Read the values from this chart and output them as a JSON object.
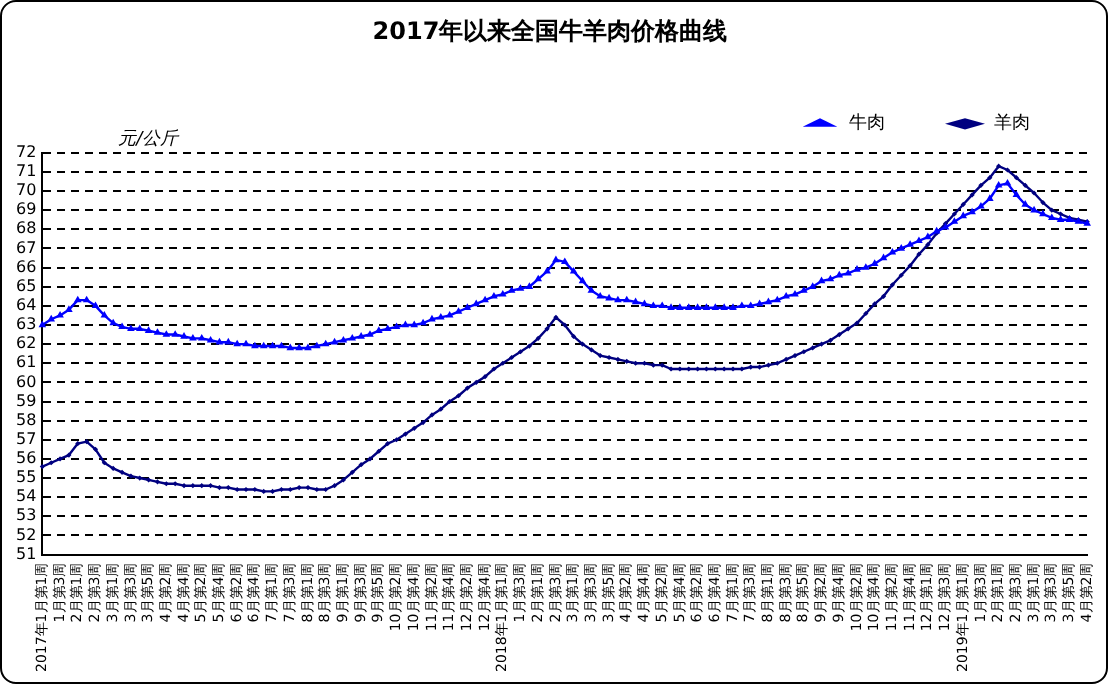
{
  "chart_data": {
    "type": "line",
    "title": "2017年以来全国牛羊肉价格曲线",
    "ylabel": "元/公斤",
    "categories": [
      "2017年1月第1周",
      null,
      "1月第3周",
      null,
      "2月第1周",
      null,
      "2月第3周",
      null,
      "3月第1周",
      null,
      "3月第3周",
      null,
      "3月第5周",
      null,
      "4月第2周",
      null,
      "4月第4周",
      null,
      "5月第2周",
      null,
      "5月第4周",
      null,
      "6月第2周",
      null,
      "6月第4周",
      null,
      "7月第1周",
      null,
      "7月第3周",
      null,
      "8月第1周",
      null,
      "8月第3周",
      null,
      "9月第1周",
      null,
      "9月第3周",
      null,
      "9月第5周",
      null,
      "10月第2周",
      null,
      "10月第4周",
      null,
      "11月第2周",
      null,
      "11月第4周",
      null,
      "12月第2周",
      null,
      "12月第4周",
      null,
      "2018年1月第1周",
      null,
      "1月第3周",
      null,
      "2月第1周",
      null,
      "2月第3周",
      null,
      "3月第1周",
      null,
      "3月第3周",
      null,
      "3月第5周",
      null,
      "4月第2周",
      null,
      "4月第4周",
      null,
      "5月第2周",
      null,
      "5月第4周",
      null,
      "6月第2周",
      null,
      "6月第4周",
      null,
      "7月第1周",
      null,
      "7月第3周",
      null,
      "8月第1周",
      null,
      "8月第3周",
      null,
      "8月第5周",
      null,
      "9月第2周",
      null,
      "9月第4周",
      null,
      "10月第2周",
      null,
      "10月第4周",
      null,
      "11月第2周",
      null,
      "11月第4周",
      null,
      "12月第1周",
      null,
      "12月第3周",
      null,
      "2019年1月第1周",
      null,
      "1月第3周",
      null,
      "2月第1周",
      null,
      "2月第3周",
      null,
      "3月第1周",
      null,
      "3月第3周",
      null,
      "3月第5周",
      null,
      "4月第2周"
    ],
    "series": [
      {
        "name": "牛肉",
        "color": "#0000ff",
        "marker": "triangle",
        "values": [
          63.0,
          63.3,
          63.5,
          63.8,
          64.3,
          64.3,
          64.0,
          63.5,
          63.1,
          62.9,
          62.8,
          62.8,
          62.7,
          62.6,
          62.5,
          62.5,
          62.4,
          62.3,
          62.3,
          62.2,
          62.1,
          62.1,
          62.0,
          62.0,
          61.9,
          61.9,
          61.9,
          61.9,
          61.8,
          61.8,
          61.8,
          61.9,
          62.0,
          62.1,
          62.2,
          62.3,
          62.4,
          62.5,
          62.7,
          62.8,
          62.9,
          63.0,
          63.0,
          63.1,
          63.3,
          63.4,
          63.5,
          63.7,
          63.9,
          64.1,
          64.3,
          64.5,
          64.6,
          64.8,
          64.9,
          65.0,
          65.4,
          65.8,
          66.4,
          66.3,
          65.8,
          65.3,
          64.8,
          64.5,
          64.4,
          64.3,
          64.3,
          64.2,
          64.1,
          64.0,
          64.0,
          63.9,
          63.9,
          63.9,
          63.9,
          63.9,
          63.9,
          63.9,
          63.9,
          64.0,
          64.0,
          64.1,
          64.2,
          64.3,
          64.5,
          64.6,
          64.8,
          65.0,
          65.3,
          65.4,
          65.6,
          65.7,
          65.9,
          66.0,
          66.2,
          66.5,
          66.8,
          67.0,
          67.2,
          67.4,
          67.6,
          67.9,
          68.1,
          68.4,
          68.7,
          68.9,
          69.2,
          69.6,
          70.3,
          70.4,
          69.8,
          69.3,
          69.0,
          68.8,
          68.6,
          68.5,
          68.5,
          68.4,
          68.3
        ]
      },
      {
        "name": "羊肉",
        "color": "#000080",
        "marker": "diamond",
        "values": [
          55.6,
          55.8,
          56.0,
          56.2,
          56.8,
          56.9,
          56.5,
          55.8,
          55.5,
          55.3,
          55.1,
          55.0,
          54.9,
          54.8,
          54.7,
          54.7,
          54.6,
          54.6,
          54.6,
          54.6,
          54.5,
          54.5,
          54.4,
          54.4,
          54.4,
          54.3,
          54.3,
          54.4,
          54.4,
          54.5,
          54.5,
          54.4,
          54.4,
          54.6,
          54.9,
          55.3,
          55.7,
          56.0,
          56.4,
          56.8,
          57.0,
          57.3,
          57.6,
          57.9,
          58.3,
          58.6,
          59.0,
          59.3,
          59.7,
          60.0,
          60.3,
          60.7,
          61.0,
          61.3,
          61.6,
          61.9,
          62.3,
          62.8,
          63.4,
          63.0,
          62.4,
          62.0,
          61.7,
          61.4,
          61.3,
          61.2,
          61.1,
          61.0,
          61.0,
          60.9,
          60.9,
          60.7,
          60.7,
          60.7,
          60.7,
          60.7,
          60.7,
          60.7,
          60.7,
          60.7,
          60.8,
          60.8,
          60.9,
          61.0,
          61.2,
          61.4,
          61.6,
          61.8,
          62.0,
          62.2,
          62.5,
          62.8,
          63.1,
          63.6,
          64.1,
          64.5,
          65.1,
          65.6,
          66.1,
          66.7,
          67.2,
          67.8,
          68.3,
          68.8,
          69.3,
          69.8,
          70.3,
          70.7,
          71.3,
          71.1,
          70.7,
          70.3,
          69.9,
          69.4,
          69.0,
          68.8,
          68.6,
          68.5,
          68.4
        ]
      }
    ],
    "ylim": [
      51,
      72
    ],
    "yticks": [
      51,
      52,
      53,
      54,
      55,
      56,
      57,
      58,
      59,
      60,
      61,
      62,
      63,
      64,
      65,
      66,
      67,
      68,
      69,
      70,
      71,
      72
    ],
    "grid": "y",
    "legend": "top right",
    "line_style": "solid"
  }
}
